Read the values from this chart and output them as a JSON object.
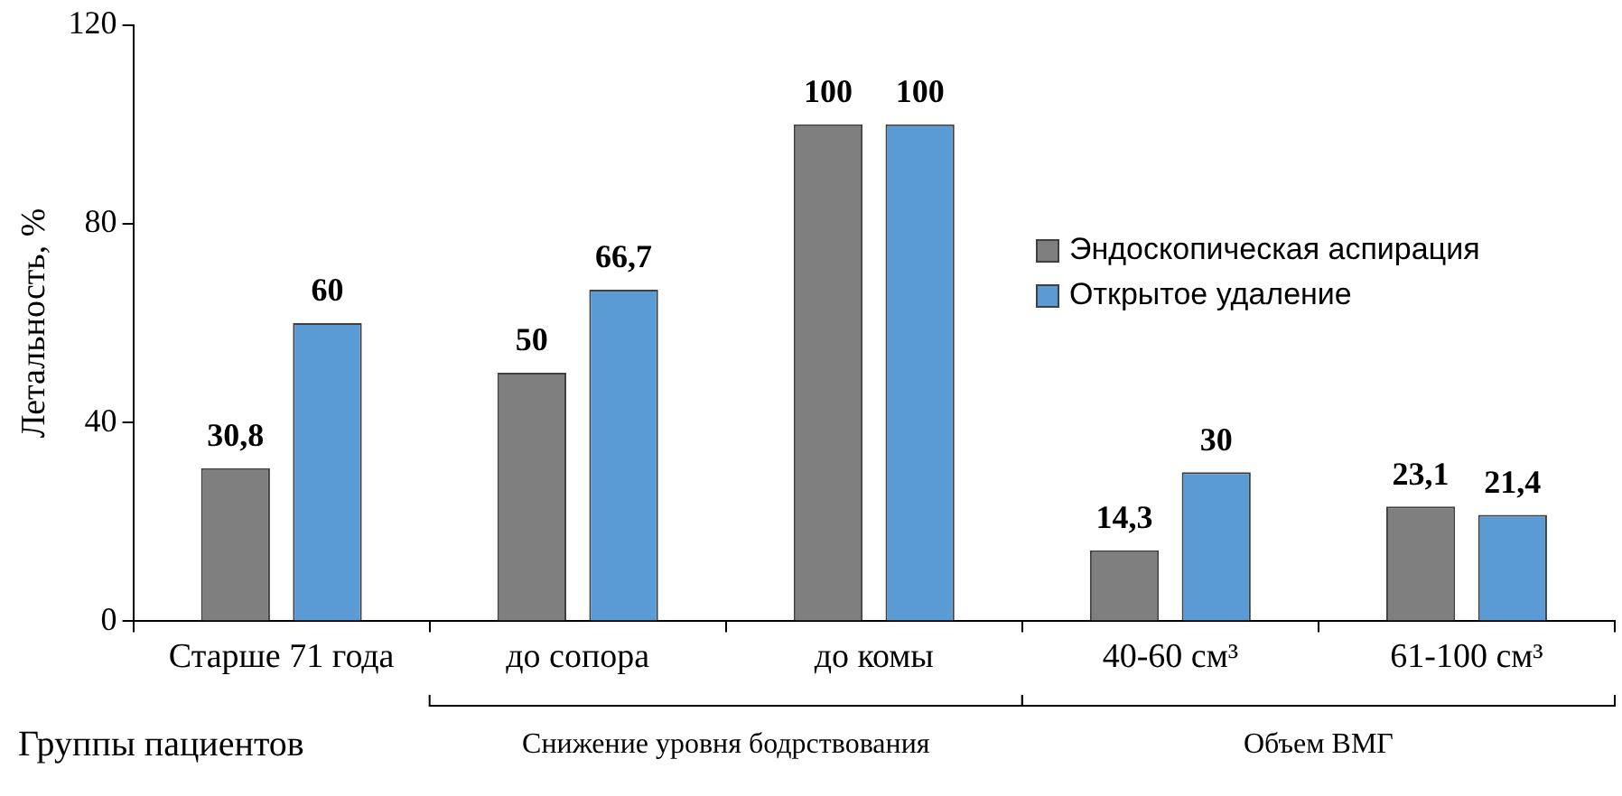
{
  "chart_data": {
    "type": "bar",
    "ylabel": "Летальность, %",
    "xlabel": "Группы пациентов",
    "categories": [
      "Старше 71 года",
      "до сопора",
      "до комы",
      "40-60 см³",
      "61-100 см³"
    ],
    "series": [
      {
        "name": "Эндоскопическая аспирация",
        "color": "#7f7f7f",
        "values": [
          30.8,
          50,
          100,
          14.3,
          23.1
        ],
        "value_labels": [
          "30,8",
          "50",
          "100",
          "14,3",
          "23,1"
        ]
      },
      {
        "name": "Открытое удаление",
        "color": "#5b9bd5",
        "values": [
          60,
          66.7,
          100,
          30,
          21.4
        ],
        "value_labels": [
          "60",
          "66,7",
          "100",
          "30",
          "21,4"
        ]
      }
    ],
    "annotations": [
      "Снижение уровня бодрствования",
      "Объем ВМГ"
    ],
    "ylim": [
      0,
      120
    ],
    "yticks": [
      0,
      40,
      80,
      120
    ],
    "grid": false,
    "legend": "right"
  }
}
